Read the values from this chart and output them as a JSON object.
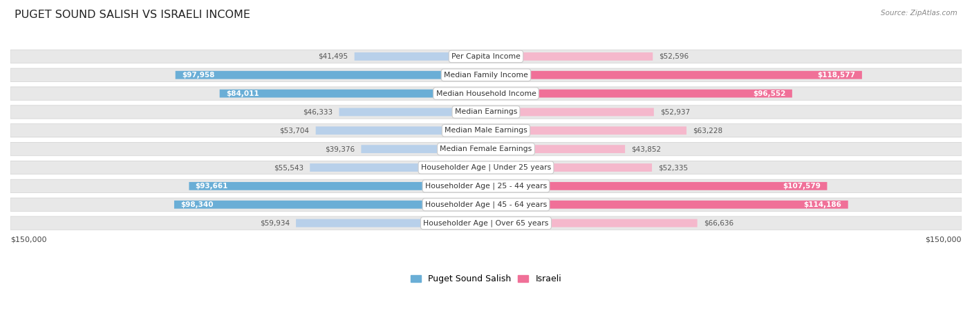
{
  "title": "PUGET SOUND SALISH VS ISRAELI INCOME",
  "source": "Source: ZipAtlas.com",
  "categories": [
    "Per Capita Income",
    "Median Family Income",
    "Median Household Income",
    "Median Earnings",
    "Median Male Earnings",
    "Median Female Earnings",
    "Householder Age | Under 25 years",
    "Householder Age | 25 - 44 years",
    "Householder Age | 45 - 64 years",
    "Householder Age | Over 65 years"
  ],
  "puget_values": [
    41495,
    97958,
    84011,
    46333,
    53704,
    39376,
    55543,
    93661,
    98340,
    59934
  ],
  "israeli_values": [
    52596,
    118577,
    96552,
    52937,
    63228,
    43852,
    52335,
    107579,
    114186,
    66636
  ],
  "puget_labels": [
    "$41,495",
    "$97,958",
    "$84,011",
    "$46,333",
    "$53,704",
    "$39,376",
    "$55,543",
    "$93,661",
    "$98,340",
    "$59,934"
  ],
  "israeli_labels": [
    "$52,596",
    "$118,577",
    "$96,552",
    "$52,937",
    "$63,228",
    "$43,852",
    "$52,335",
    "$107,579",
    "$114,186",
    "$66,636"
  ],
  "max_val": 150000,
  "puget_color_low": "#b8d0ea",
  "puget_color_high": "#6aaed6",
  "israeli_color_low": "#f5b8cc",
  "israeli_color_high": "#f07098",
  "label_dark": "#555555",
  "label_white": "#ffffff",
  "bg_color": "#ffffff",
  "row_bg": "#e8e8e8",
  "row_border": "#d0d0d0",
  "threshold_puget": 70000,
  "threshold_israeli": 70000,
  "bottom_label_left": "$150,000",
  "bottom_label_right": "$150,000",
  "legend_puget": "Puget Sound Salish",
  "legend_israeli": "Israeli"
}
